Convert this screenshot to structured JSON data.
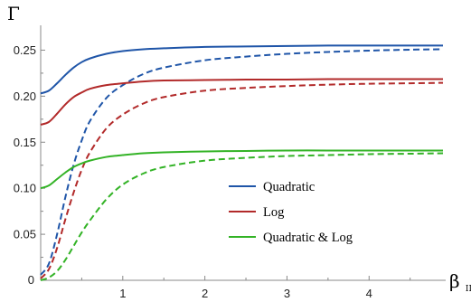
{
  "chart_data": {
    "type": "line",
    "ylabel": "Γ",
    "xlabel": "β",
    "xlabel_sub": "II",
    "xlim": [
      0,
      4.9
    ],
    "ylim": [
      0,
      0.275
    ],
    "xticks": [
      1,
      2,
      3,
      4
    ],
    "yticks": [
      0.05,
      0.1,
      0.15,
      0.2,
      0.25
    ],
    "ytick_labels": [
      "0.05",
      "0.10",
      "0.15",
      "0.20",
      "0.25"
    ],
    "xtick_labels": [
      "1",
      "2",
      "3",
      "4"
    ],
    "origin_label": "0",
    "grid": false,
    "legend_position": "center-right",
    "legend": [
      {
        "label": "Quadratic",
        "color": "#1f55a8"
      },
      {
        "label": "Log",
        "color": "#b22a2a"
      },
      {
        "label": "Quadratic & Log",
        "color": "#33b326"
      }
    ],
    "series": [
      {
        "name": "Quadratic",
        "style": "solid",
        "color": "#1f55a8",
        "x": [
          0,
          0.1,
          0.2,
          0.3,
          0.4,
          0.5,
          0.6,
          0.8,
          1.0,
          1.25,
          1.5,
          2.0,
          2.5,
          3.0,
          3.5,
          4.0,
          4.5,
          4.9
        ],
        "y": [
          0.203,
          0.206,
          0.214,
          0.223,
          0.231,
          0.237,
          0.241,
          0.246,
          0.249,
          0.251,
          0.252,
          0.2535,
          0.254,
          0.2545,
          0.255,
          0.255,
          0.255,
          0.255
        ]
      },
      {
        "style": "dashed",
        "color": "#1f55a8",
        "x": [
          0,
          0.1,
          0.2,
          0.3,
          0.4,
          0.5,
          0.6,
          0.8,
          1.0,
          1.25,
          1.5,
          2.0,
          2.5,
          3.0,
          3.5,
          4.0,
          4.5,
          4.9
        ],
        "y": [
          0.006,
          0.018,
          0.05,
          0.09,
          0.125,
          0.152,
          0.173,
          0.198,
          0.212,
          0.224,
          0.231,
          0.239,
          0.243,
          0.246,
          0.248,
          0.2495,
          0.2505,
          0.251
        ]
      },
      {
        "name": "Log",
        "style": "solid",
        "color": "#b22a2a",
        "x": [
          0,
          0.1,
          0.2,
          0.3,
          0.4,
          0.5,
          0.6,
          0.8,
          1.0,
          1.25,
          1.5,
          2.0,
          2.5,
          3.0,
          3.5,
          4.0,
          4.5,
          4.9
        ],
        "y": [
          0.169,
          0.172,
          0.181,
          0.191,
          0.199,
          0.204,
          0.208,
          0.212,
          0.214,
          0.216,
          0.217,
          0.2175,
          0.218,
          0.218,
          0.2185,
          0.2185,
          0.2185,
          0.2185
        ]
      },
      {
        "style": "dashed",
        "color": "#b22a2a",
        "x": [
          0,
          0.1,
          0.2,
          0.3,
          0.4,
          0.5,
          0.6,
          0.8,
          1.0,
          1.25,
          1.5,
          2.0,
          2.5,
          3.0,
          3.5,
          4.0,
          4.5,
          4.9
        ],
        "y": [
          0.002,
          0.012,
          0.035,
          0.066,
          0.095,
          0.12,
          0.139,
          0.165,
          0.18,
          0.192,
          0.199,
          0.206,
          0.209,
          0.211,
          0.2125,
          0.2135,
          0.214,
          0.2145
        ]
      },
      {
        "name": "Quadratic & Log",
        "style": "solid",
        "color": "#33b326",
        "x": [
          0,
          0.1,
          0.2,
          0.3,
          0.4,
          0.5,
          0.6,
          0.8,
          1.0,
          1.25,
          1.5,
          2.0,
          2.5,
          3.0,
          3.5,
          4.0,
          4.5,
          4.9
        ],
        "y": [
          0.1,
          0.103,
          0.11,
          0.117,
          0.123,
          0.127,
          0.13,
          0.134,
          0.136,
          0.138,
          0.139,
          0.14,
          0.1405,
          0.141,
          0.141,
          0.141,
          0.141,
          0.141
        ]
      },
      {
        "style": "dashed",
        "color": "#33b326",
        "x": [
          0,
          0.1,
          0.2,
          0.3,
          0.4,
          0.5,
          0.6,
          0.8,
          1.0,
          1.25,
          1.5,
          2.0,
          2.5,
          3.0,
          3.5,
          4.0,
          4.5,
          4.9
        ],
        "y": [
          0.0,
          0.003,
          0.01,
          0.022,
          0.037,
          0.052,
          0.065,
          0.088,
          0.104,
          0.116,
          0.123,
          0.13,
          0.133,
          0.135,
          0.136,
          0.137,
          0.1375,
          0.138
        ]
      }
    ]
  }
}
